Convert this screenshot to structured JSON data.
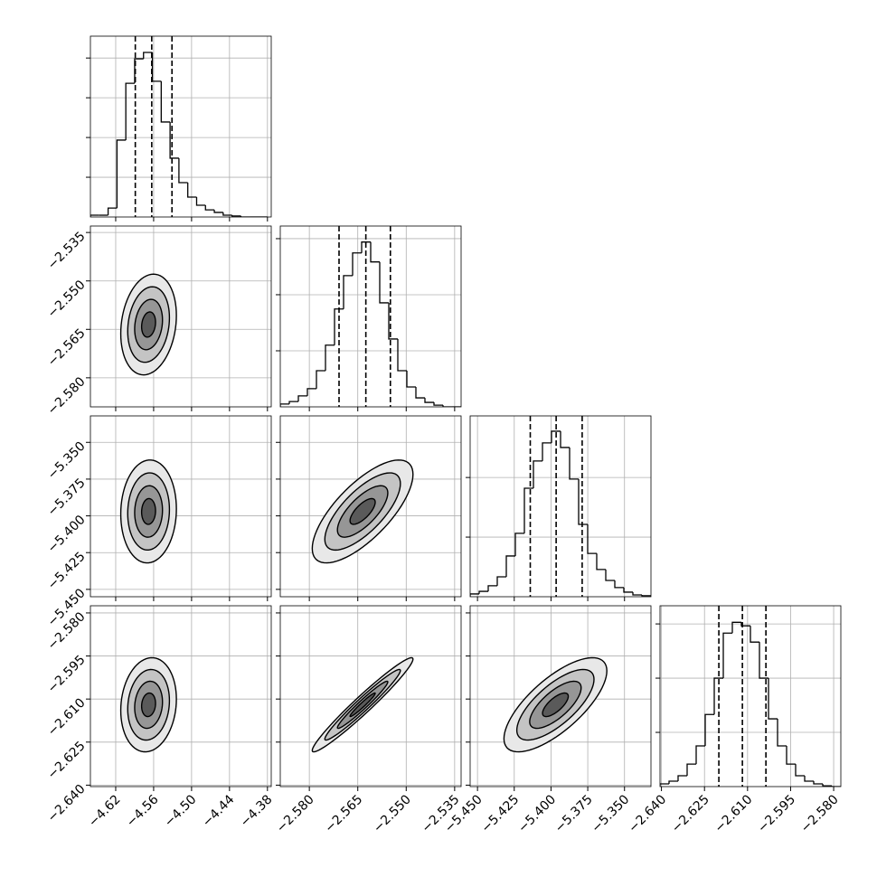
{
  "chart_data": {
    "type": "corner",
    "grid": true,
    "color": "#000000",
    "contour_levels": [
      0.5,
      1,
      1.5,
      2
    ],
    "contour_fills": [
      "#e8e8e8",
      "#c4c4c4",
      "#969696",
      "#5a5a5a"
    ],
    "correlation": [
      [
        1,
        0.18,
        0.05,
        0.12
      ],
      [
        0.18,
        1,
        0.72,
        0.97
      ],
      [
        0.05,
        0.72,
        1,
        0.72
      ],
      [
        0.12,
        0.97,
        0.72,
        1
      ]
    ],
    "variables": [
      {
        "lim": [
          -4.66,
          -4.374
        ],
        "mean": -4.568,
        "std": 0.022,
        "ticks": [
          {
            "value": -4.62,
            "label": "−4.62"
          },
          {
            "value": -4.56,
            "label": "−4.56"
          },
          {
            "value": -4.5,
            "label": "−4.50"
          },
          {
            "value": -4.44,
            "label": "−4.44"
          },
          {
            "value": -4.38,
            "label": "−4.38"
          }
        ],
        "quantiles": [
          -4.589,
          -4.563,
          -4.531
        ],
        "bins": [
          -4.66,
          -4.646,
          -4.632,
          -4.618,
          -4.604,
          -4.59,
          -4.576,
          -4.562,
          -4.548,
          -4.534,
          -4.52,
          -4.506,
          -4.492,
          -4.478,
          -4.464,
          -4.45,
          -4.436,
          -4.422,
          -4.408,
          -4.394,
          -4.38
        ],
        "counts": [
          9,
          9,
          45,
          387,
          673,
          796,
          828,
          683,
          478,
          296,
          173,
          100,
          59,
          36,
          23,
          9,
          5,
          0,
          0,
          0
        ],
        "count_lim": [
          0,
          910
        ],
        "count_ticks": [
          200,
          400,
          600,
          800
        ]
      },
      {
        "lim": [
          -2.589,
          -2.533
        ],
        "mean": -2.5635,
        "std": 0.0078,
        "ticks": [
          {
            "value": -2.58,
            "label": "−2.580"
          },
          {
            "value": -2.565,
            "label": "−2.565"
          },
          {
            "value": -2.55,
            "label": "−2.550"
          },
          {
            "value": -2.535,
            "label": "−2.535"
          }
        ],
        "quantiles": [
          -2.5708,
          -2.5625,
          -2.5549
        ],
        "bins": [
          -2.589,
          -2.5862,
          -2.5834,
          -2.5806,
          -2.5778,
          -2.575,
          -2.5722,
          -2.5694,
          -2.5666,
          -2.5638,
          -2.561,
          -2.5582,
          -2.5554,
          -2.5526,
          -2.5498,
          -2.547,
          -2.5442,
          -2.5414,
          -2.5386,
          -2.5358,
          -2.533
        ],
        "counts": [
          10,
          19,
          39,
          65,
          129,
          220,
          349,
          468,
          549,
          588,
          517,
          371,
          242,
          129,
          71,
          32,
          16,
          6,
          0,
          0
        ],
        "count_lim": [
          0,
          645
        ],
        "count_ticks": [
          200,
          400,
          600
        ]
      },
      {
        "lim": [
          -5.455,
          -5.332
        ],
        "mean": -5.397,
        "std": 0.0175,
        "ticks": [
          {
            "value": -5.45,
            "label": "−5.450"
          },
          {
            "value": -5.425,
            "label": "−5.425"
          },
          {
            "value": -5.4,
            "label": "−5.400"
          },
          {
            "value": -5.375,
            "label": "−5.375"
          },
          {
            "value": -5.35,
            "label": "−5.350"
          }
        ],
        "quantiles": [
          -5.4141,
          -5.3965,
          -5.3788
        ],
        "bins": [
          -5.455,
          -5.44885,
          -5.4427,
          -5.43655,
          -5.4304,
          -5.42425,
          -5.4181,
          -5.41195,
          -5.4058,
          -5.39965,
          -5.3935,
          -5.38735,
          -5.3812,
          -5.37505,
          -5.3689,
          -5.36275,
          -5.3566,
          -5.35045,
          -5.3443,
          -5.33815,
          -5.332
        ],
        "counts": [
          14,
          27,
          55,
          100,
          205,
          319,
          546,
          683,
          774,
          833,
          751,
          592,
          364,
          218,
          137,
          82,
          46,
          23,
          9,
          5
        ],
        "count_lim": [
          0,
          910
        ],
        "count_ticks": [
          300,
          600
        ]
      },
      {
        "lim": [
          -2.6405,
          -2.5775
        ],
        "mean": -2.612,
        "std": 0.0082,
        "ticks": [
          {
            "value": -2.64,
            "label": "−2.640"
          },
          {
            "value": -2.625,
            "label": "−2.625"
          },
          {
            "value": -2.61,
            "label": "−2.610"
          },
          {
            "value": -2.595,
            "label": "−2.595"
          },
          {
            "value": -2.58,
            "label": "−2.580"
          }
        ],
        "quantiles": [
          -2.62,
          -2.6118,
          -2.6036
        ],
        "bins": [
          -2.6405,
          -2.63735,
          -2.6342,
          -2.63105,
          -2.6279,
          -2.62475,
          -2.6216,
          -2.61845,
          -2.6153,
          -2.61215,
          -2.609,
          -2.60585,
          -2.6027,
          -2.59955,
          -2.5964,
          -2.59325,
          -2.5901,
          -2.58695,
          -2.5838,
          -2.58065,
          -2.5775
        ],
        "counts": [
          10,
          20,
          40,
          83,
          150,
          266,
          400,
          566,
          606,
          593,
          533,
          400,
          250,
          150,
          83,
          40,
          20,
          10,
          3,
          0
        ],
        "count_lim": [
          0,
          667
        ],
        "count_ticks": [
          200,
          400,
          600
        ]
      }
    ]
  }
}
